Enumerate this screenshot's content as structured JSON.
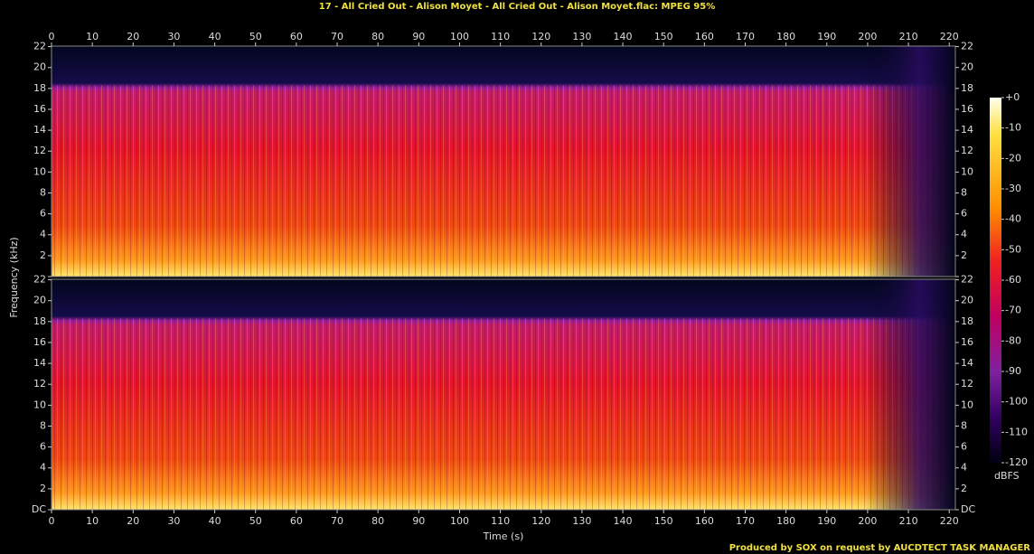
{
  "chart_data": {
    "type": "spectrogram",
    "title": "17 - All Cried Out - Alison Moyet - All Cried Out - Alison Moyet.flac: MPEG 95%",
    "x_label": "Time (s)",
    "y_label": "Frequency (kHz)",
    "xlim": [
      0,
      221.5
    ],
    "xticks": [
      0,
      10,
      20,
      30,
      40,
      50,
      60,
      70,
      80,
      90,
      100,
      110,
      120,
      130,
      140,
      150,
      160,
      170,
      180,
      190,
      200,
      210,
      220
    ],
    "ylim": [
      0,
      22.05
    ],
    "yticks": [
      {
        "value": 0,
        "label": "DC"
      },
      2,
      4,
      6,
      8,
      10,
      12,
      14,
      16,
      18,
      20,
      22
    ],
    "colorbar_label": "dBFS",
    "colorbar_lim": [
      -120,
      0
    ],
    "colorbar_ticks": [
      {
        "value": 0,
        "label": "+0"
      },
      -10,
      -20,
      -30,
      -40,
      -50,
      -60,
      -70,
      -80,
      -90,
      -100,
      -110,
      -120
    ],
    "footer": "Produced by SOX on request by AUCDTECT TASK MANAGER"
  }
}
